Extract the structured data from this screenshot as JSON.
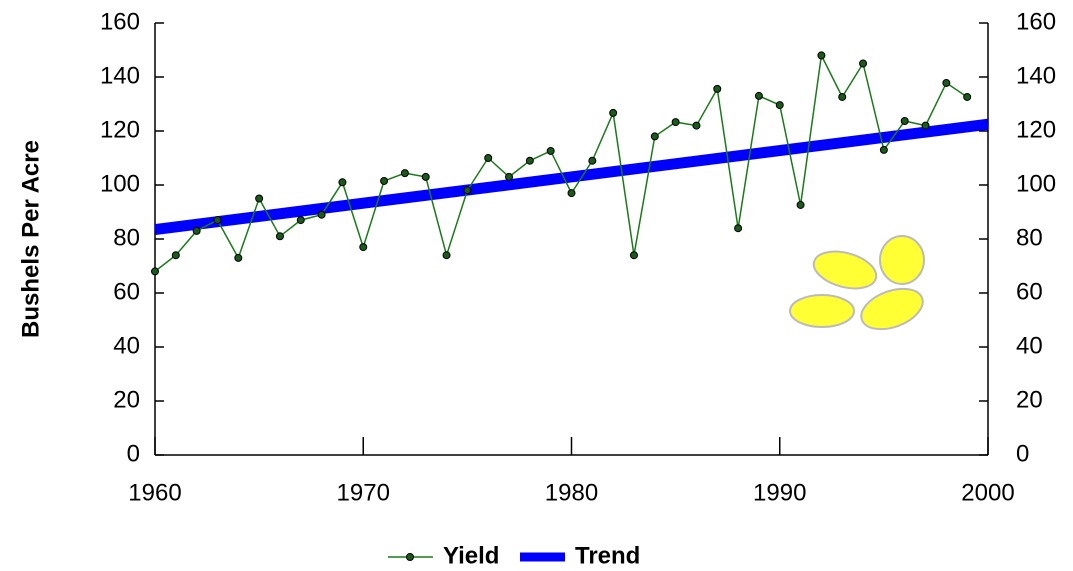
{
  "chart_data": {
    "type": "line",
    "y_label": "Bushels Per Acre",
    "xlim": [
      1960,
      2000
    ],
    "xticks": [
      1960,
      1970,
      1980,
      1990,
      2000
    ],
    "ylim": [
      0,
      160
    ],
    "yticks": [
      0,
      20,
      40,
      60,
      80,
      100,
      120,
      140,
      160
    ],
    "y2lim": [
      0,
      160
    ],
    "y2ticks": [
      0,
      20,
      40,
      60,
      80,
      100,
      120,
      140,
      160
    ],
    "grid": true,
    "legend": "bottom",
    "series": [
      {
        "name": "Yield",
        "color": "#1a7a1a",
        "x": [
          1960,
          1961,
          1962,
          1963,
          1964,
          1965,
          1966,
          1967,
          1968,
          1969,
          1970,
          1971,
          1972,
          1973,
          1974,
          1975,
          1976,
          1977,
          1978,
          1979,
          1980,
          1981,
          1982,
          1983,
          1984,
          1985,
          1986,
          1987,
          1988,
          1989,
          1990,
          1991,
          1992,
          1993,
          1994,
          1995,
          1996,
          1997,
          1998,
          1999
        ],
        "values": [
          68,
          74,
          83,
          87,
          73,
          95,
          81,
          87,
          89,
          101,
          77,
          101.5,
          104.4,
          103,
          74,
          98,
          110,
          103,
          109,
          112.6,
          97,
          109,
          126.7,
          74,
          118,
          123.3,
          122,
          135.6,
          84,
          133,
          129.6,
          92.6,
          148,
          132.6,
          145,
          113,
          123.7,
          122,
          137.8,
          132.6
        ]
      },
      {
        "name": "Trend",
        "color": "#0000ff",
        "x": [
          1960,
          2000
        ],
        "values": [
          83.5,
          122.5
        ]
      }
    ]
  }
}
